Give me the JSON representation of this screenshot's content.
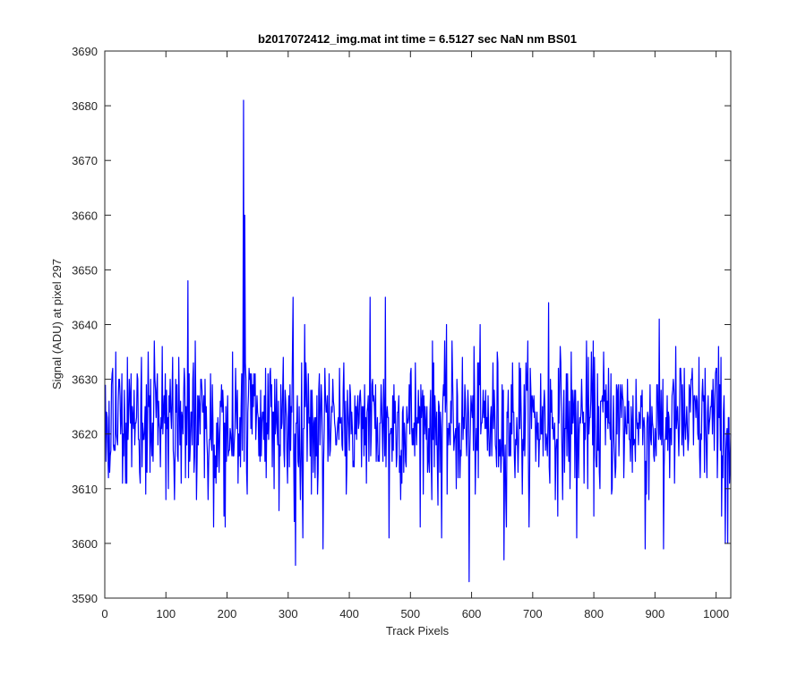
{
  "chart_data": {
    "type": "line",
    "title": "b2017072412_img.mat int time = 6.5127 sec  NaN nm BS01",
    "xlabel": "Track Pixels",
    "ylabel": "Signal (ADU) at pixel 297",
    "xlim": [
      0,
      1024
    ],
    "ylim": [
      3590,
      3690
    ],
    "xticks": [
      0,
      100,
      200,
      300,
      400,
      500,
      600,
      700,
      800,
      900,
      1000
    ],
    "yticks": [
      3590,
      3600,
      3610,
      3620,
      3630,
      3640,
      3650,
      3660,
      3670,
      3680,
      3690
    ],
    "xtick_labels": [
      "0",
      "100",
      "200",
      "300",
      "400",
      "500",
      "600",
      "700",
      "800",
      "900",
      "1000"
    ],
    "ytick_labels": [
      "3590",
      "3600",
      "3610",
      "3620",
      "3630",
      "3640",
      "3650",
      "3660",
      "3670",
      "3680",
      "3690"
    ],
    "grid": false,
    "legend": "none",
    "series": [
      {
        "color": "#0000ff",
        "x_start": 1,
        "x_step": 1,
        "n_points": 1024,
        "baseline_mean": 3622,
        "noise_std": 6.5,
        "noise_min": 3603,
        "noise_max": 3641,
        "highlights": [
          {
            "x": 136,
            "y": 3648
          },
          {
            "x": 178,
            "y": 3603
          },
          {
            "x": 197,
            "y": 3603
          },
          {
            "x": 227,
            "y": 3681
          },
          {
            "x": 229,
            "y": 3660
          },
          {
            "x": 308,
            "y": 3645
          },
          {
            "x": 310,
            "y": 3604
          },
          {
            "x": 312,
            "y": 3596
          },
          {
            "x": 324,
            "y": 3601
          },
          {
            "x": 357,
            "y": 3599
          },
          {
            "x": 434,
            "y": 3645
          },
          {
            "x": 459,
            "y": 3645
          },
          {
            "x": 465,
            "y": 3601
          },
          {
            "x": 551,
            "y": 3601
          },
          {
            "x": 596,
            "y": 3593
          },
          {
            "x": 653,
            "y": 3597
          },
          {
            "x": 726,
            "y": 3644
          },
          {
            "x": 772,
            "y": 3601
          },
          {
            "x": 884,
            "y": 3599
          },
          {
            "x": 914,
            "y": 3599
          },
          {
            "x": 1015,
            "y": 3600
          },
          {
            "x": 1019,
            "y": 3600
          }
        ]
      }
    ]
  }
}
